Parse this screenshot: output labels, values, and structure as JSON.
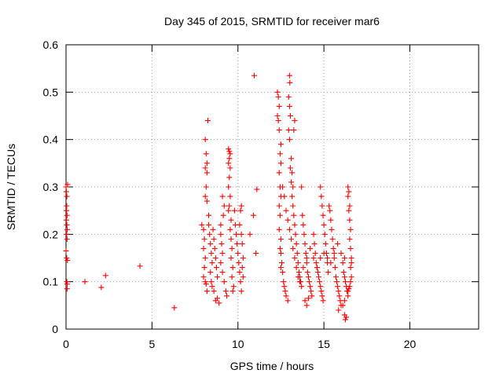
{
  "chart_data": {
    "type": "scatter",
    "title": "Day 345 of 2015, SRMTID for receiver mar6",
    "xlabel": "GPS time / hours",
    "ylabel": "SRMTID / TECUs",
    "xlim": [
      0,
      24
    ],
    "ylim": [
      0,
      0.6
    ],
    "xticks": [
      0,
      5,
      10,
      15,
      20
    ],
    "yticks": [
      0,
      0.1,
      0.2,
      0.3,
      0.4,
      0.5,
      0.6
    ],
    "grid": true,
    "legend": "none",
    "marker": "plus",
    "color": "#ff0000",
    "series": [
      {
        "points": [
          [
            0.0,
            0.3
          ],
          [
            0.02,
            0.29
          ],
          [
            0.05,
            0.28
          ],
          [
            0.04,
            0.26
          ],
          [
            0.03,
            0.25
          ],
          [
            0.06,
            0.24
          ],
          [
            0.02,
            0.23
          ],
          [
            0.05,
            0.22
          ],
          [
            0.07,
            0.21
          ],
          [
            0.03,
            0.2
          ],
          [
            0.06,
            0.19
          ],
          [
            0.0,
            0.165
          ],
          [
            0.04,
            0.15
          ],
          [
            0.08,
            0.145
          ],
          [
            0.05,
            0.1
          ],
          [
            0.07,
            0.095
          ],
          [
            0.06,
            0.085
          ],
          [
            0.09,
            0.305
          ],
          [
            1.1,
            0.1
          ],
          [
            2.05,
            0.088
          ],
          [
            2.3,
            0.113
          ],
          [
            4.3,
            0.133
          ],
          [
            6.3,
            0.045
          ],
          [
            7.9,
            0.22
          ],
          [
            8.0,
            0.21
          ],
          [
            8.05,
            0.19
          ],
          [
            8.0,
            0.17
          ],
          [
            8.1,
            0.15
          ],
          [
            8.05,
            0.13
          ],
          [
            8.0,
            0.11
          ],
          [
            8.1,
            0.1
          ],
          [
            8.15,
            0.095
          ],
          [
            8.2,
            0.08
          ],
          [
            8.1,
            0.4
          ],
          [
            8.15,
            0.37
          ],
          [
            8.2,
            0.35
          ],
          [
            8.1,
            0.34
          ],
          [
            8.2,
            0.33
          ],
          [
            8.15,
            0.3
          ],
          [
            8.2,
            0.27
          ],
          [
            8.25,
            0.44
          ],
          [
            8.1,
            0.28
          ],
          [
            8.3,
            0.22
          ],
          [
            8.35,
            0.2
          ],
          [
            8.4,
            0.18
          ],
          [
            8.45,
            0.16
          ],
          [
            8.5,
            0.14
          ],
          [
            8.4,
            0.12
          ],
          [
            8.45,
            0.1
          ],
          [
            8.5,
            0.09
          ],
          [
            8.3,
            0.24
          ],
          [
            8.55,
            0.21
          ],
          [
            8.6,
            0.19
          ],
          [
            8.65,
            0.17
          ],
          [
            8.7,
            0.15
          ],
          [
            8.75,
            0.13
          ],
          [
            8.8,
            0.11
          ],
          [
            8.6,
            0.08
          ],
          [
            8.7,
            0.06
          ],
          [
            8.8,
            0.065
          ],
          [
            8.9,
            0.055
          ],
          [
            9.0,
            0.2
          ],
          [
            9.05,
            0.18
          ],
          [
            9.1,
            0.16
          ],
          [
            9.0,
            0.22
          ],
          [
            9.15,
            0.24
          ],
          [
            9.2,
            0.26
          ],
          [
            9.1,
            0.28
          ],
          [
            9.0,
            0.14
          ],
          [
            9.1,
            0.12
          ],
          [
            9.2,
            0.1
          ],
          [
            9.3,
            0.08
          ],
          [
            9.35,
            0.07
          ],
          [
            9.45,
            0.38
          ],
          [
            9.5,
            0.375
          ],
          [
            9.55,
            0.37
          ],
          [
            9.5,
            0.36
          ],
          [
            9.45,
            0.35
          ],
          [
            9.55,
            0.34
          ],
          [
            9.5,
            0.32
          ],
          [
            9.45,
            0.3
          ],
          [
            9.55,
            0.28
          ],
          [
            9.5,
            0.26
          ],
          [
            9.45,
            0.25
          ],
          [
            9.6,
            0.23
          ],
          [
            9.55,
            0.21
          ],
          [
            9.6,
            0.19
          ],
          [
            9.65,
            0.17
          ],
          [
            9.6,
            0.15
          ],
          [
            9.7,
            0.13
          ],
          [
            9.65,
            0.11
          ],
          [
            9.75,
            0.09
          ],
          [
            9.7,
            0.08
          ],
          [
            9.8,
            0.25
          ],
          [
            9.85,
            0.22
          ],
          [
            9.9,
            0.2
          ],
          [
            9.95,
            0.18
          ],
          [
            10.0,
            0.16
          ],
          [
            10.05,
            0.14
          ],
          [
            10.1,
            0.12
          ],
          [
            10.15,
            0.1
          ],
          [
            10.2,
            0.08
          ],
          [
            10.1,
            0.22
          ],
          [
            10.2,
            0.2
          ],
          [
            10.25,
            0.18
          ],
          [
            10.3,
            0.15
          ],
          [
            10.25,
            0.13
          ],
          [
            10.3,
            0.11
          ],
          [
            10.2,
            0.26
          ],
          [
            10.15,
            0.25
          ],
          [
            10.7,
            0.2
          ],
          [
            10.9,
            0.24
          ],
          [
            11.1,
            0.295
          ],
          [
            11.05,
            0.16
          ],
          [
            10.95,
            0.535
          ],
          [
            12.3,
            0.5
          ],
          [
            12.35,
            0.49
          ],
          [
            12.4,
            0.47
          ],
          [
            12.3,
            0.45
          ],
          [
            12.35,
            0.44
          ],
          [
            12.4,
            0.42
          ],
          [
            12.5,
            0.39
          ],
          [
            12.45,
            0.37
          ],
          [
            12.5,
            0.35
          ],
          [
            12.4,
            0.33
          ],
          [
            12.45,
            0.3
          ],
          [
            12.5,
            0.28
          ],
          [
            12.4,
            0.26
          ],
          [
            12.45,
            0.24
          ],
          [
            12.4,
            0.21
          ],
          [
            12.5,
            0.19
          ],
          [
            12.45,
            0.17
          ],
          [
            12.5,
            0.16
          ],
          [
            12.55,
            0.14
          ],
          [
            12.5,
            0.13
          ],
          [
            12.6,
            0.12
          ],
          [
            12.65,
            0.1
          ],
          [
            12.7,
            0.09
          ],
          [
            12.75,
            0.08
          ],
          [
            12.8,
            0.07
          ],
          [
            12.9,
            0.06
          ],
          [
            13.0,
            0.535
          ],
          [
            13.02,
            0.52
          ],
          [
            12.95,
            0.49
          ],
          [
            13.0,
            0.47
          ],
          [
            13.05,
            0.45
          ],
          [
            12.95,
            0.42
          ],
          [
            13.0,
            0.4
          ],
          [
            13.1,
            0.36
          ],
          [
            13.05,
            0.34
          ],
          [
            13.15,
            0.33
          ],
          [
            13.1,
            0.31
          ],
          [
            13.2,
            0.3
          ],
          [
            13.15,
            0.28
          ],
          [
            13.2,
            0.26
          ],
          [
            13.25,
            0.24
          ],
          [
            13.3,
            0.22
          ],
          [
            13.35,
            0.2
          ],
          [
            13.4,
            0.18
          ],
          [
            13.45,
            0.16
          ],
          [
            13.5,
            0.14
          ],
          [
            13.55,
            0.12
          ],
          [
            13.6,
            0.11
          ],
          [
            13.65,
            0.1
          ],
          [
            13.7,
            0.09
          ],
          [
            13.3,
            0.44
          ],
          [
            13.25,
            0.42
          ],
          [
            13.7,
            0.3
          ],
          [
            13.75,
            0.24
          ],
          [
            13.8,
            0.22
          ],
          [
            13.85,
            0.2
          ],
          [
            13.9,
            0.18
          ],
          [
            13.95,
            0.16
          ],
          [
            14.0,
            0.14
          ],
          [
            14.05,
            0.12
          ],
          [
            14.1,
            0.11
          ],
          [
            14.15,
            0.1
          ],
          [
            14.2,
            0.09
          ],
          [
            14.25,
            0.08
          ],
          [
            14.3,
            0.07
          ],
          [
            13.9,
            0.06
          ],
          [
            14.0,
            0.05
          ],
          [
            14.1,
            0.065
          ],
          [
            14.4,
            0.2
          ],
          [
            14.45,
            0.18
          ],
          [
            14.5,
            0.16
          ],
          [
            14.55,
            0.14
          ],
          [
            14.6,
            0.13
          ],
          [
            14.65,
            0.12
          ],
          [
            14.7,
            0.11
          ],
          [
            14.75,
            0.1
          ],
          [
            14.8,
            0.09
          ],
          [
            14.85,
            0.08
          ],
          [
            14.9,
            0.07
          ],
          [
            14.95,
            0.06
          ],
          [
            14.8,
            0.3
          ],
          [
            14.85,
            0.28
          ],
          [
            14.9,
            0.26
          ],
          [
            14.95,
            0.24
          ],
          [
            15.0,
            0.22
          ],
          [
            15.05,
            0.2
          ],
          [
            15.1,
            0.18
          ],
          [
            15.15,
            0.16
          ],
          [
            15.2,
            0.14
          ],
          [
            15.25,
            0.12
          ],
          [
            15.3,
            0.26
          ],
          [
            15.35,
            0.25
          ],
          [
            15.4,
            0.23
          ],
          [
            15.45,
            0.21
          ],
          [
            15.5,
            0.19
          ],
          [
            15.55,
            0.17
          ],
          [
            15.6,
            0.15
          ],
          [
            15.65,
            0.13
          ],
          [
            15.7,
            0.11
          ],
          [
            15.75,
            0.1
          ],
          [
            15.8,
            0.09
          ],
          [
            15.85,
            0.08
          ],
          [
            15.9,
            0.07
          ],
          [
            15.95,
            0.06
          ],
          [
            16.0,
            0.05
          ],
          [
            15.85,
            0.04
          ],
          [
            16.1,
            0.14
          ],
          [
            16.15,
            0.12
          ],
          [
            16.2,
            0.11
          ],
          [
            16.25,
            0.1
          ],
          [
            16.3,
            0.09
          ],
          [
            16.35,
            0.08
          ],
          [
            16.4,
            0.07
          ],
          [
            16.2,
            0.03
          ],
          [
            16.25,
            0.02
          ],
          [
            16.3,
            0.025
          ],
          [
            16.1,
            0.05
          ],
          [
            16.2,
            0.06
          ],
          [
            16.4,
            0.3
          ],
          [
            16.45,
            0.29
          ],
          [
            16.4,
            0.28
          ],
          [
            16.5,
            0.26
          ],
          [
            16.45,
            0.25
          ],
          [
            16.5,
            0.23
          ],
          [
            16.55,
            0.21
          ],
          [
            16.5,
            0.19
          ],
          [
            16.55,
            0.17
          ],
          [
            16.6,
            0.15
          ],
          [
            16.55,
            0.13
          ],
          [
            16.6,
            0.11
          ],
          [
            16.55,
            0.1
          ],
          [
            16.5,
            0.09
          ],
          [
            16.45,
            0.085
          ],
          [
            16.4,
            0.08
          ],
          [
            16.6,
            0.14
          ],
          [
            12.6,
            0.3
          ],
          [
            12.7,
            0.28
          ],
          [
            12.8,
            0.25
          ],
          [
            12.9,
            0.23
          ],
          [
            13.0,
            0.21
          ],
          [
            13.1,
            0.19
          ],
          [
            13.2,
            0.17
          ],
          [
            13.3,
            0.15
          ],
          [
            13.4,
            0.13
          ],
          [
            13.5,
            0.11
          ],
          [
            13.6,
            0.1
          ],
          [
            13.8,
            0.13
          ],
          [
            14.0,
            0.15
          ],
          [
            14.2,
            0.17
          ],
          [
            14.4,
            0.15
          ],
          [
            14.6,
            0.13
          ],
          [
            14.8,
            0.15
          ],
          [
            15.0,
            0.16
          ],
          [
            15.2,
            0.15
          ],
          [
            15.4,
            0.14
          ],
          [
            15.6,
            0.16
          ],
          [
            15.8,
            0.18
          ],
          [
            16.0,
            0.16
          ],
          [
            16.2,
            0.15
          ]
        ]
      }
    ]
  }
}
